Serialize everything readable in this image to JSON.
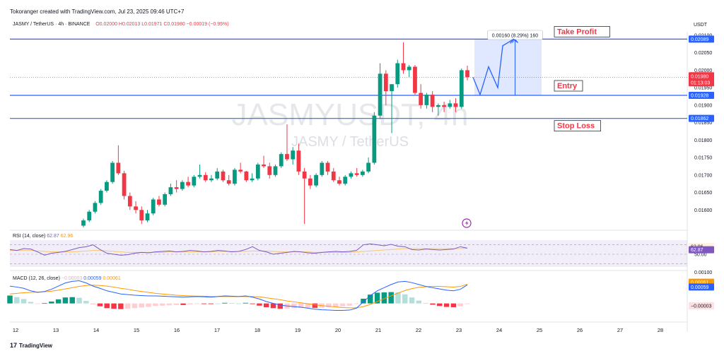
{
  "header": {
    "credit": "Tokoranger created with TradingView.com, Jul 23, 2025 09:46 UTC+7",
    "symbol_line": "JASMY / TetherUS · 4h · BINANCE",
    "ohlc_line": "O0.02000  H0.02013  L0.01971  C0.01980  −0.00019 (−0.95%)",
    "currency": "USDT"
  },
  "watermark": {
    "ticker": "JASMYUSDT, 4h",
    "name": "JASMY / TetherUS"
  },
  "footer": {
    "brand": "TradingView",
    "brand_mark": "17"
  },
  "colors": {
    "up": "#089981",
    "down": "#f23645",
    "level": "#2962ff",
    "rsi": "#7e57c2",
    "signal": "#ff9800"
  },
  "chart_data": {
    "type": "candlestick",
    "price_axis": {
      "ylim": [
        0.0155,
        0.0211
      ],
      "ticks": [
        "0.02100",
        "0.02050",
        "0.02000",
        "0.01950",
        "0.01900",
        "0.01850",
        "0.01800",
        "0.01750",
        "0.01700",
        "0.01650",
        "0.01600"
      ]
    },
    "time_axis": {
      "ticks": [
        "12",
        "13",
        "14",
        "15",
        "16",
        "17",
        "18",
        "19",
        "20",
        "21",
        "22",
        "23",
        "24",
        "25",
        "26",
        "27",
        "28"
      ]
    },
    "candles": [
      [
        0.01555,
        0.01575,
        0.0155,
        0.0157
      ],
      [
        0.0157,
        0.016,
        0.01565,
        0.01595
      ],
      [
        0.01595,
        0.01625,
        0.0159,
        0.0162
      ],
      [
        0.0162,
        0.0166,
        0.01615,
        0.01655
      ],
      [
        0.01655,
        0.01685,
        0.0165,
        0.0168
      ],
      [
        0.0168,
        0.0174,
        0.01675,
        0.01735
      ],
      [
        0.01735,
        0.01785,
        0.017,
        0.01705
      ],
      [
        0.01705,
        0.01712,
        0.0163,
        0.0164
      ],
      [
        0.0164,
        0.0165,
        0.016,
        0.0161
      ],
      [
        0.0161,
        0.01625,
        0.0159,
        0.016
      ],
      [
        0.016,
        0.0161,
        0.0156,
        0.0157
      ],
      [
        0.0157,
        0.016,
        0.01565,
        0.0159
      ],
      [
        0.0159,
        0.01635,
        0.01585,
        0.0163
      ],
      [
        0.0163,
        0.0164,
        0.0161,
        0.01615
      ],
      [
        0.01615,
        0.0165,
        0.0161,
        0.01645
      ],
      [
        0.01645,
        0.01675,
        0.0164,
        0.01665
      ],
      [
        0.01665,
        0.01685,
        0.0165,
        0.0166
      ],
      [
        0.0166,
        0.01685,
        0.01655,
        0.0168
      ],
      [
        0.0168,
        0.01695,
        0.01665,
        0.0167
      ],
      [
        0.0167,
        0.017,
        0.01665,
        0.01695
      ],
      [
        0.01695,
        0.0173,
        0.0169,
        0.017
      ],
      [
        0.017,
        0.01708,
        0.0168,
        0.01685
      ],
      [
        0.01685,
        0.017,
        0.0168,
        0.0169
      ],
      [
        0.0169,
        0.0172,
        0.01685,
        0.0171
      ],
      [
        0.0171,
        0.01715,
        0.0168,
        0.01685
      ],
      [
        0.01685,
        0.017,
        0.0167,
        0.01675
      ],
      [
        0.01675,
        0.0172,
        0.0167,
        0.01715
      ],
      [
        0.01715,
        0.01735,
        0.01705,
        0.0171
      ],
      [
        0.0171,
        0.01712,
        0.0168,
        0.01685
      ],
      [
        0.01685,
        0.01705,
        0.0168,
        0.0169
      ],
      [
        0.0169,
        0.01735,
        0.01685,
        0.0173
      ],
      [
        0.0173,
        0.01755,
        0.0172,
        0.01725
      ],
      [
        0.01725,
        0.01735,
        0.0169,
        0.017
      ],
      [
        0.017,
        0.0173,
        0.01695,
        0.01725
      ],
      [
        0.01725,
        0.01765,
        0.0172,
        0.0176
      ],
      [
        0.0176,
        0.01845,
        0.0174,
        0.01745
      ],
      [
        0.01745,
        0.0178,
        0.0173,
        0.0177
      ],
      [
        0.0177,
        0.0179,
        0.017,
        0.0171
      ],
      [
        0.0171,
        0.0172,
        0.0156,
        0.0169
      ],
      [
        0.0169,
        0.017,
        0.0166,
        0.0167
      ],
      [
        0.0167,
        0.01705,
        0.01665,
        0.017
      ],
      [
        0.017,
        0.0174,
        0.01695,
        0.01735
      ],
      [
        0.01735,
        0.0174,
        0.017,
        0.0171
      ],
      [
        0.0171,
        0.0172,
        0.0168,
        0.01685
      ],
      [
        0.01685,
        0.01695,
        0.0167,
        0.01675
      ],
      [
        0.01675,
        0.017,
        0.0167,
        0.01695
      ],
      [
        0.01695,
        0.0171,
        0.0169,
        0.01705
      ],
      [
        0.01705,
        0.0172,
        0.01695,
        0.017
      ],
      [
        0.017,
        0.01715,
        0.01695,
        0.0171
      ],
      [
        0.0171,
        0.0175,
        0.01705,
        0.01735
      ],
      [
        0.01735,
        0.0188,
        0.0173,
        0.0187
      ],
      [
        0.0187,
        0.0202,
        0.0186,
        0.0199
      ],
      [
        0.0199,
        0.02,
        0.019,
        0.0194
      ],
      [
        0.0194,
        0.0196,
        0.0182,
        0.0196
      ],
      [
        0.0196,
        0.0203,
        0.0195,
        0.0202
      ],
      [
        0.0202,
        0.0208,
        0.0199,
        0.02
      ],
      [
        0.02,
        0.02015,
        0.0198,
        0.0201
      ],
      [
        0.0201,
        0.02015,
        0.0193,
        0.01935
      ],
      [
        0.01935,
        0.0196,
        0.0189,
        0.019
      ],
      [
        0.019,
        0.01935,
        0.0189,
        0.0193
      ],
      [
        0.0193,
        0.0194,
        0.0188,
        0.01895
      ],
      [
        0.01895,
        0.01905,
        0.0187,
        0.019
      ],
      [
        0.019,
        0.0191,
        0.0188,
        0.01895
      ],
      [
        0.01895,
        0.01915,
        0.0189,
        0.01905
      ],
      [
        0.01905,
        0.0192,
        0.0188,
        0.01895
      ],
      [
        0.01895,
        0.02005,
        0.0189,
        0.02
      ],
      [
        0.02,
        0.02013,
        0.01971,
        0.0198
      ]
    ],
    "levels": [
      {
        "label": "Take Profit",
        "price": "0.02089",
        "value": 0.02089
      },
      {
        "label": "Entry",
        "price": "0.01928",
        "value": 0.01928
      },
      {
        "label": "Stop Loss",
        "price": "0.01862",
        "value": 0.01862
      }
    ],
    "last_price": {
      "price": "0.01980",
      "countdown": "01:13:03",
      "value": 0.0198
    },
    "measure_label": "0.00160 (8.29%) 160",
    "projection": [
      0.0198,
      0.0193,
      0.0201,
      0.0195,
      0.0207,
      0.02089
    ],
    "rsi": {
      "label": "RSI (14, close)",
      "value_label": "62.87",
      "ma_label": "62.96",
      "mid_label": "50.00",
      "ylim": [
        20,
        95
      ],
      "upper": 70,
      "mid": 50,
      "lower": 30,
      "values": [
        60,
        58,
        62,
        61,
        55,
        48,
        52,
        54,
        56,
        60,
        64,
        66,
        70,
        60,
        52,
        50,
        48,
        49,
        52,
        54,
        53,
        55,
        56,
        57,
        55,
        56,
        58,
        57,
        55,
        56,
        58,
        57,
        55,
        56,
        60,
        66,
        58,
        55,
        50,
        52,
        54,
        56,
        55,
        53,
        52,
        54,
        55,
        56,
        55,
        56,
        58,
        70,
        72,
        70,
        68,
        71,
        67,
        66,
        60,
        59,
        61,
        60,
        59,
        60,
        61,
        66,
        62.87
      ],
      "ma": [
        58,
        58,
        58,
        58,
        57,
        56,
        55,
        55,
        55,
        55,
        56,
        57,
        58,
        58,
        57,
        56,
        55,
        54,
        54,
        54,
        54,
        54,
        54,
        55,
        55,
        55,
        55,
        55,
        55,
        55,
        56,
        56,
        56,
        56,
        56,
        57,
        57,
        57,
        56,
        55,
        55,
        55,
        55,
        55,
        54,
        54,
        54,
        54,
        54,
        54,
        55,
        56,
        57,
        58,
        59,
        60,
        61,
        62,
        62,
        62,
        62,
        62,
        62,
        62,
        62,
        62,
        62.96
      ]
    },
    "macd": {
      "label": "MACD (12, 26, close)",
      "hist_label": "−0.00003",
      "macd_label": "0.00059",
      "signal_label": "0.00061",
      "axis_top": "0.00100",
      "ylim": [
        -0.0005,
        0.001
      ],
      "macd": [
        0.00055,
        0.00052,
        0.00048,
        0.0004,
        0.00035,
        0.00038,
        0.00045,
        0.00055,
        0.00065,
        0.0007,
        0.00072,
        0.00065,
        0.00055,
        0.00048,
        0.0004,
        0.00035,
        0.0003,
        0.00028,
        0.00026,
        0.00025,
        0.00024,
        0.00024,
        0.00023,
        0.00022,
        0.00021,
        0.0002,
        0.00021,
        0.00022,
        0.00021,
        0.0002,
        0.00022,
        0.00024,
        0.00023,
        0.00022,
        0.00024,
        0.0002,
        0.00014,
        6e-05,
        0.0,
        -5e-05,
        -8e-05,
        -0.0001,
        -0.00012,
        -0.00015,
        -0.00018,
        -0.0002,
        -0.00021,
        -0.00022,
        -0.00022,
        -0.00021,
        -0.00015,
        5e-05,
        0.00025,
        0.0004,
        0.0005,
        0.0006,
        0.00068,
        0.0007,
        0.00066,
        0.0006,
        0.00054,
        0.0005,
        0.00046,
        0.00042,
        0.0004,
        0.00045,
        0.00059
      ],
      "signal": [
        0.0003,
        0.00032,
        0.00034,
        0.00035,
        0.00036,
        0.00037,
        0.00039,
        0.00042,
        0.00046,
        0.0005,
        0.00054,
        0.00057,
        0.00058,
        0.00057,
        0.00055,
        0.00052,
        0.00048,
        0.00045,
        0.00041,
        0.00038,
        0.00035,
        0.00032,
        0.0003,
        0.00028,
        0.00026,
        0.00025,
        0.00024,
        0.00023,
        0.00023,
        0.00022,
        0.00022,
        0.00022,
        0.00022,
        0.00022,
        0.00022,
        0.00022,
        0.00021,
        0.00018,
        0.00015,
        0.00012,
        8e-05,
        5e-05,
        2e-05,
        -1e-05,
        -4e-05,
        -7e-05,
        -9e-05,
        -0.00011,
        -0.00013,
        -0.00014,
        -0.00014,
        -0.0001,
        -3e-05,
        6e-05,
        0.00015,
        0.00024,
        0.00033,
        0.00041,
        0.00047,
        0.00051,
        0.00053,
        0.00054,
        0.00054,
        0.00053,
        0.00052,
        0.00054,
        0.00061
      ]
    }
  }
}
